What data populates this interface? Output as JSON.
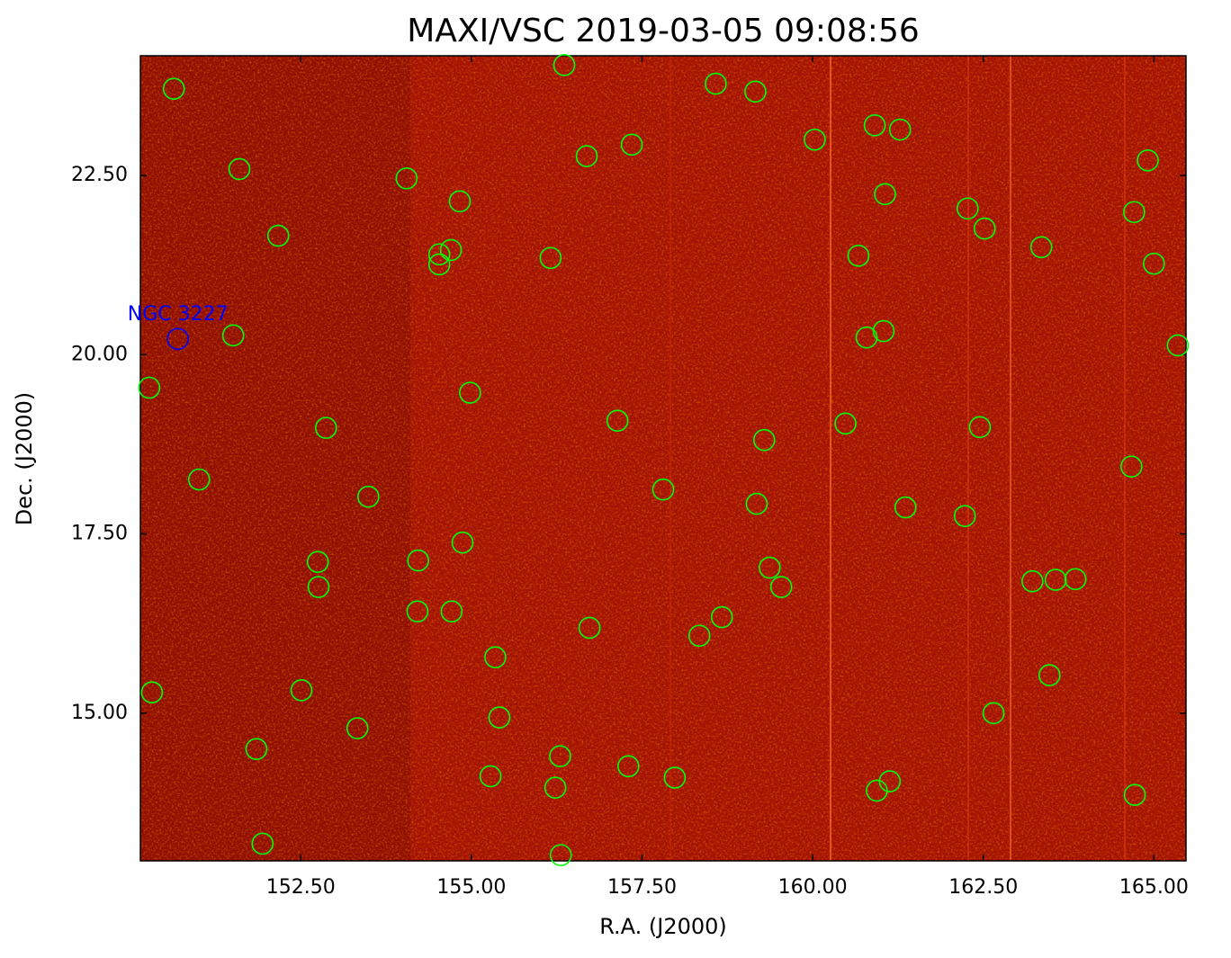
{
  "chart_data": {
    "type": "scatter",
    "title": "MAXI/VSC 2019-03-05 09:08:56",
    "x_label": "R.A. (J2000)",
    "y_label": "Dec. (J2000)",
    "xlim": [
      150.15,
      165.47
    ],
    "ylim": [
      12.94,
      24.17
    ],
    "xticks": [
      {
        "value": 152.5,
        "label": "152.50"
      },
      {
        "value": 155,
        "label": "155.00"
      },
      {
        "value": 157.5,
        "label": "157.50"
      },
      {
        "value": 160,
        "label": "160.00"
      },
      {
        "value": 162.5,
        "label": "162.50"
      },
      {
        "value": 165,
        "label": "165.00"
      }
    ],
    "yticks": [
      {
        "value": 15,
        "label": "15.00"
      },
      {
        "value": 17.5,
        "label": "17.50"
      },
      {
        "value": 20,
        "label": "20.00"
      },
      {
        "value": 22.5,
        "label": "22.50"
      }
    ],
    "color": "#00ff00",
    "x": [
      150.64,
      151.6,
      152.17,
      154.05,
      154.83,
      156.36,
      156.69,
      157.35,
      158.58,
      159.16,
      160.03,
      160.91,
      161.28,
      161.06,
      162.27,
      162.52,
      163.35,
      164.71,
      164.91,
      165.0,
      154.53,
      154.7,
      154.53,
      156.16,
      160.67,
      161.04,
      160.79,
      165.35,
      151.51,
      150.28,
      154.98,
      152.87,
      157.14,
      160.48,
      159.29,
      162.45,
      151.01,
      153.49,
      157.81,
      164.67,
      159.18,
      161.36,
      162.23,
      154.87,
      152.75,
      154.22,
      159.37,
      152.76,
      159.54,
      163.22,
      163.56,
      163.85,
      154.21,
      154.71,
      156.73,
      158.67,
      158.34,
      155.35,
      163.47,
      150.32,
      152.51,
      153.33,
      155.41,
      162.65,
      151.85,
      156.3,
      155.28,
      157.3,
      156.23,
      157.98,
      160.94,
      161.13,
      164.72,
      151.94,
      156.31
    ],
    "y": [
      23.71,
      22.59,
      21.66,
      22.46,
      22.14,
      24.04,
      22.77,
      22.93,
      23.78,
      23.67,
      23.0,
      23.2,
      23.14,
      22.24,
      22.04,
      21.76,
      21.5,
      21.99,
      22.71,
      21.27,
      21.4,
      21.46,
      21.26,
      21.35,
      21.38,
      20.33,
      20.24,
      20.13,
      20.27,
      19.54,
      19.47,
      18.98,
      19.08,
      19.04,
      18.81,
      18.99,
      18.26,
      18.02,
      18.12,
      18.44,
      17.92,
      17.87,
      17.75,
      17.38,
      17.11,
      17.13,
      17.03,
      16.76,
      16.76,
      16.84,
      16.86,
      16.87,
      16.42,
      16.42,
      16.19,
      16.34,
      16.08,
      15.78,
      15.53,
      15.29,
      15.32,
      14.79,
      14.94,
      15.0,
      14.5,
      14.4,
      14.12,
      14.26,
      13.96,
      14.1,
      13.92,
      14.05,
      13.86,
      13.18,
      13.02
    ],
    "annotation": {
      "text": "NGC 3227",
      "x": 150.7,
      "y": 20.22,
      "color": "#0000ff"
    }
  }
}
